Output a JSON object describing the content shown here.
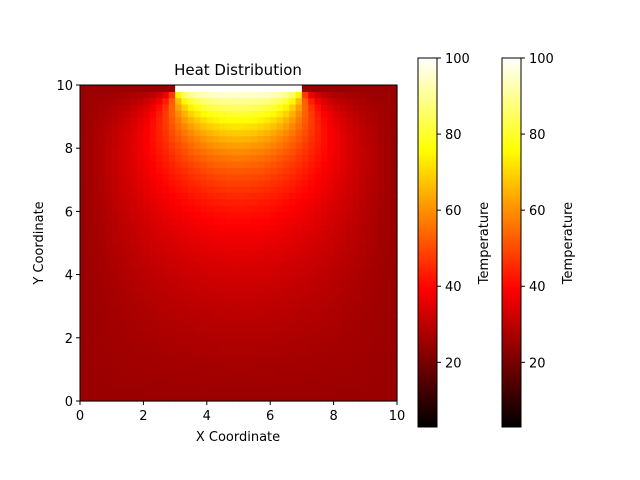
{
  "chart_data": {
    "type": "heatmap",
    "title": "Heat Distribution",
    "xlabel": "X Coordinate",
    "ylabel": "Y Coordinate",
    "xlim": [
      0,
      10
    ],
    "ylim": [
      0,
      10
    ],
    "x_ticks": [
      "0",
      "2",
      "4",
      "6",
      "8",
      "10"
    ],
    "y_ticks": [
      "0",
      "2",
      "4",
      "6",
      "8",
      "10"
    ],
    "grid": false,
    "colormap": "hot",
    "value_range": [
      3,
      100
    ],
    "boundary_conditions": {
      "top_hot_segment": {
        "x_range": [
          3,
          7
        ],
        "value": 100
      },
      "edges_value": 25
    },
    "colorbars": [
      {
        "label": "Temperature",
        "ticks": [
          "20",
          "40",
          "60",
          "80",
          "100"
        ],
        "tick_values": [
          20,
          40,
          60,
          80,
          100
        ],
        "range": [
          3,
          100
        ]
      },
      {
        "label": "Temperature",
        "ticks": [
          "20",
          "40",
          "60",
          "80",
          "100"
        ],
        "tick_values": [
          20,
          40,
          60,
          80,
          100
        ],
        "range": [
          3,
          100
        ]
      }
    ]
  }
}
